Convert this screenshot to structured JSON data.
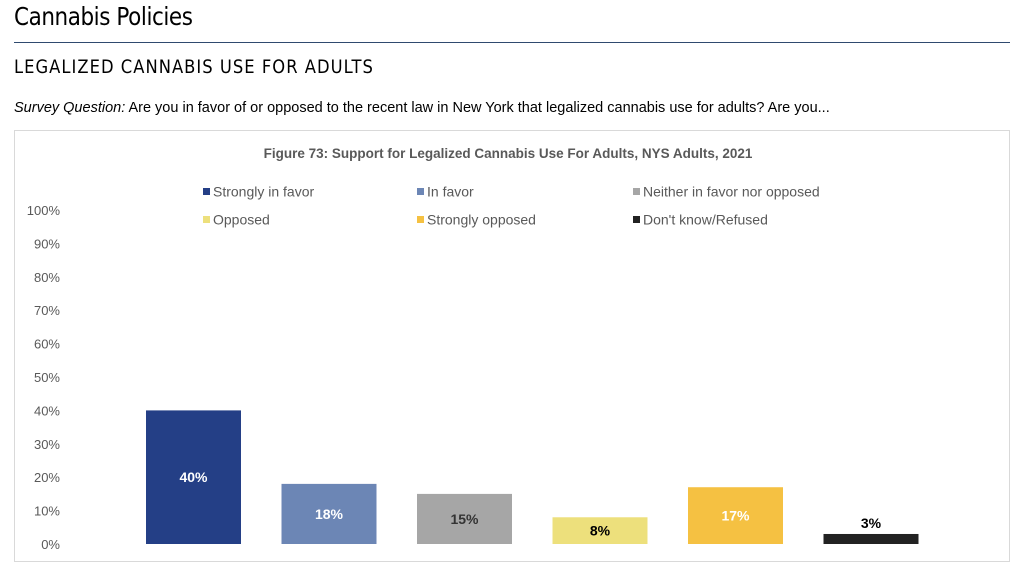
{
  "header": {
    "page_title": "Cannabis Policies",
    "section_title": "LEGALIZED CANNABIS USE FOR ADULTS",
    "survey_label": "Survey Question:",
    "survey_text": "Are you in favor of or opposed to the recent law in New York that legalized cannabis use for adults? Are you..."
  },
  "chart_data": {
    "type": "bar",
    "title": "Figure 73: Support for Legalized Cannabis Use For Adults, NYS Adults, 2021",
    "categories": [
      "Strongly in favor",
      "In favor",
      "Neither in favor nor opposed",
      "Opposed",
      "Strongly opposed",
      "Don't know/Refused"
    ],
    "values": [
      40,
      18,
      15,
      8,
      17,
      3
    ],
    "data_labels": [
      "40%",
      "18%",
      "15%",
      "8%",
      "17%",
      "3%"
    ],
    "colors": [
      "#243f86",
      "#6c86b5",
      "#a6a6a6",
      "#ede07c",
      "#f5c142",
      "#222222"
    ],
    "label_colors": [
      "#ffffff",
      "#ffffff",
      "#333333",
      "#000000",
      "#ffffff",
      "#000000"
    ],
    "yticks": [
      "0%",
      "10%",
      "20%",
      "30%",
      "40%",
      "50%",
      "60%",
      "70%",
      "80%",
      "90%",
      "100%"
    ],
    "ylim": [
      0,
      100
    ],
    "grid": false,
    "legend_position": "top"
  }
}
